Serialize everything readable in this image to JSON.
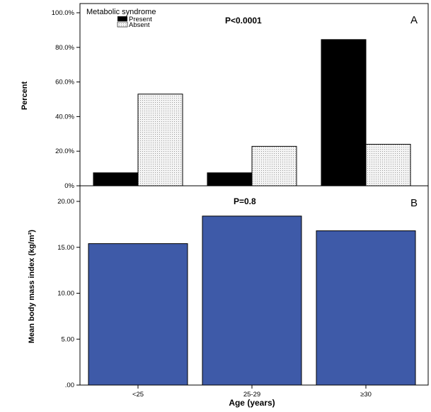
{
  "chart_data": [
    {
      "type": "bar",
      "panel": "A",
      "ylabel": "Percent",
      "annotation": "P<0.0001",
      "legend_title": "Metabolic syndrome",
      "legend_position": "top-left",
      "categories": [
        "<25",
        "25-29",
        "≥30"
      ],
      "series": [
        {
          "name": "Present",
          "values": [
            7.5,
            7.5,
            84.5
          ],
          "color": "#000000"
        },
        {
          "name": "Absent",
          "values": [
            53.0,
            22.8,
            24.0
          ],
          "color": "#ececec"
        }
      ],
      "ylim": [
        0,
        100
      ],
      "yticks": [
        0,
        20,
        40,
        60,
        80,
        100
      ],
      "ytick_labels": [
        "0%",
        "20.0%",
        "40.0%",
        "60.0%",
        "80.0%",
        "100.0%"
      ],
      "grid": false
    },
    {
      "type": "bar",
      "panel": "B",
      "ylabel": "Mean body mass index (kg/m²)",
      "xlabel": "Age (years)",
      "annotation": "P=0.8",
      "categories": [
        "<25",
        "25-29",
        "≥30"
      ],
      "values": [
        15.4,
        18.4,
        16.8
      ],
      "color": "#3e5aa8",
      "ylim": [
        0,
        20
      ],
      "yticks": [
        0,
        5,
        10,
        15,
        20
      ],
      "ytick_labels": [
        ".00",
        "5.00",
        "10.00",
        "15.00",
        "20.00"
      ],
      "grid": false
    }
  ]
}
